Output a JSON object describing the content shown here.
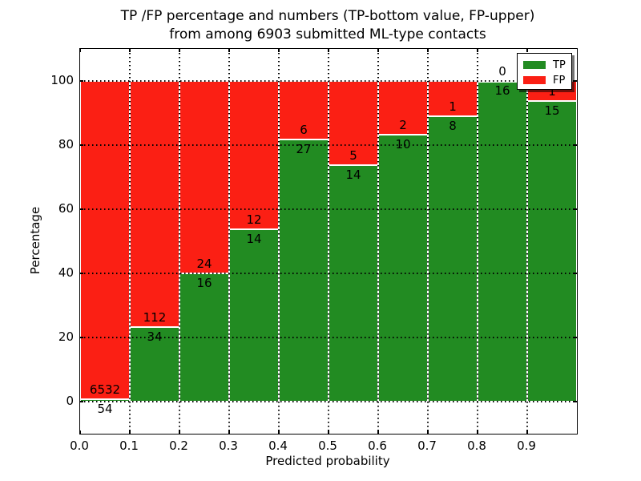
{
  "title": {
    "line1": "TP /FP percentage and numbers (TP-bottom value, FP-upper)",
    "line2": "from among 6903 submitted ML-type contacts"
  },
  "axes": {
    "xlabel": "Predicted probability",
    "ylabel": "Percentage",
    "x_tick_labels": [
      "0.0",
      "0.1",
      "0.2",
      "0.3",
      "0.4",
      "0.5",
      "0.6",
      "0.7",
      "0.8",
      "0.9"
    ],
    "x_tick_values": [
      0,
      0.1,
      0.2,
      0.3,
      0.4,
      0.5,
      0.6,
      0.7,
      0.8,
      0.9
    ],
    "y_tick_labels": [
      "0",
      "20",
      "40",
      "60",
      "80",
      "100"
    ],
    "y_tick_values": [
      0,
      20,
      40,
      60,
      80,
      100
    ],
    "xlim": [
      0,
      1
    ],
    "ylim": [
      -10,
      110
    ],
    "grid_style": "dotted"
  },
  "legend": {
    "position": "upper right",
    "items": [
      {
        "label": "TP",
        "color": "#228b22"
      },
      {
        "label": "FP",
        "color": "#fb1f14"
      }
    ]
  },
  "colors": {
    "tp": "#228b22",
    "fp": "#fb1f14",
    "grid": "#000000",
    "background": "#ffffff"
  },
  "chart_data": {
    "type": "bar",
    "stacked": true,
    "normalized": "percent of bin total",
    "title": "TP /FP percentage and numbers (TP-bottom value, FP-upper) from among 6903 submitted ML-type contacts",
    "xlabel": "Predicted probability",
    "ylabel": "Percentage",
    "total_submitted": 6903,
    "bin_width": 0.1,
    "bin_starts": [
      0,
      0.1,
      0.2,
      0.3,
      0.4,
      0.5,
      0.6,
      0.7,
      0.8,
      0.9
    ],
    "categories": [
      "0.0-0.1",
      "0.1-0.2",
      "0.2-0.3",
      "0.3-0.4",
      "0.4-0.5",
      "0.5-0.6",
      "0.6-0.7",
      "0.7-0.8",
      "0.8-0.9",
      "0.9-1.0"
    ],
    "series": [
      {
        "name": "TP",
        "color": "#228b22",
        "counts": [
          54,
          34,
          16,
          14,
          27,
          14,
          10,
          8,
          16,
          15
        ]
      },
      {
        "name": "FP",
        "color": "#fb1f14",
        "counts": [
          6532,
          112,
          24,
          12,
          6,
          5,
          2,
          1,
          0,
          1
        ]
      }
    ],
    "tp_percent": [
      0.82,
      23.29,
      40.0,
      53.85,
      81.82,
      73.68,
      83.33,
      88.89,
      100.0,
      93.75
    ],
    "xlim": [
      0,
      1
    ],
    "ylim": [
      -10,
      110
    ],
    "legend_position": "upper right",
    "grid": "dotted"
  }
}
